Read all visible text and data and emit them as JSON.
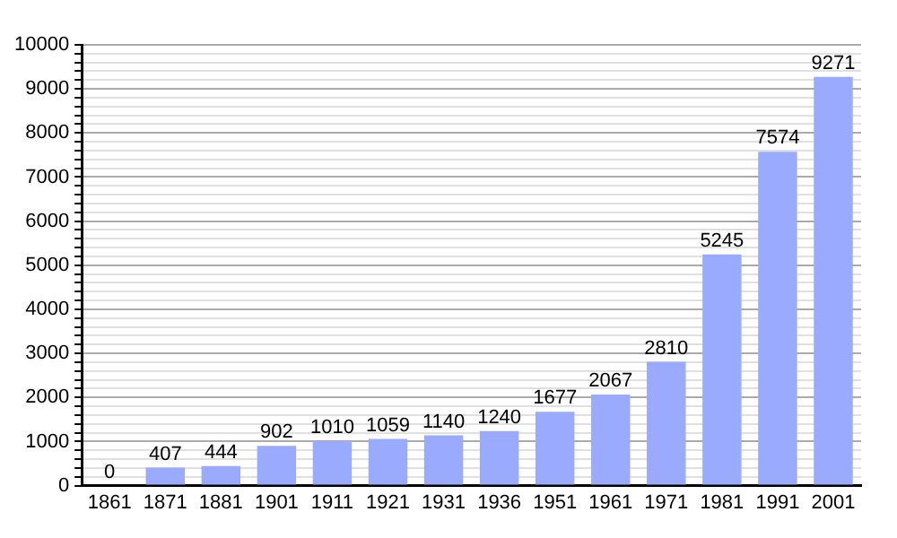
{
  "chart_data": {
    "type": "bar",
    "categories": [
      "1861",
      "1871",
      "1881",
      "1901",
      "1911",
      "1921",
      "1931",
      "1936",
      "1951",
      "1961",
      "1971",
      "1981",
      "1991",
      "2001"
    ],
    "values": [
      0,
      407,
      444,
      902,
      1010,
      1059,
      1140,
      1240,
      1677,
      2067,
      2810,
      5245,
      7574,
      9271
    ],
    "color": "#99aaff",
    "data_labels": true,
    "grid": "y",
    "legend": false,
    "ylim": [
      0,
      10000
    ],
    "yticks": [
      0,
      {
        "value": 200,
        "label": null
      },
      {
        "value": 400,
        "label": null
      },
      {
        "value": 600,
        "label": null
      },
      {
        "value": 800,
        "label": null
      },
      1000,
      {
        "value": 1200,
        "label": null
      },
      {
        "value": 1400,
        "label": null
      },
      {
        "value": 1600,
        "label": null
      },
      {
        "value": 1800,
        "label": null
      },
      2000,
      {
        "value": 2200,
        "label": null
      },
      {
        "value": 2400,
        "label": null
      },
      {
        "value": 2600,
        "label": null
      },
      {
        "value": 2800,
        "label": null
      },
      3000,
      {
        "value": 3200,
        "label": null
      },
      {
        "value": 3400,
        "label": null
      },
      {
        "value": 3600,
        "label": null
      },
      {
        "value": 3800,
        "label": null
      },
      4000,
      {
        "value": 4200,
        "label": null
      },
      {
        "value": 4400,
        "label": null
      },
      {
        "value": 4600,
        "label": null
      },
      {
        "value": 4800,
        "label": null
      },
      5000,
      {
        "value": 5200,
        "label": null
      },
      {
        "value": 5400,
        "label": null
      },
      {
        "value": 5600,
        "label": null
      },
      {
        "value": 5800,
        "label": null
      },
      6000,
      {
        "value": 6200,
        "label": null
      },
      {
        "value": 6400,
        "label": null
      },
      {
        "value": 6600,
        "label": null
      },
      {
        "value": 6800,
        "label": null
      },
      7000,
      {
        "value": 7200,
        "label": null
      },
      {
        "value": 7400,
        "label": null
      },
      {
        "value": 7600,
        "label": null
      },
      {
        "value": 7800,
        "label": null
      },
      8000,
      {
        "value": 8200,
        "label": null
      },
      {
        "value": 8400,
        "label": null
      },
      {
        "value": 8600,
        "label": null
      },
      {
        "value": 8800,
        "label": null
      },
      9000,
      {
        "value": 9200,
        "label": null
      },
      {
        "value": 9400,
        "label": null
      },
      {
        "value": 9600,
        "label": null
      },
      {
        "value": 9800,
        "label": null
      },
      10000
    ]
  }
}
